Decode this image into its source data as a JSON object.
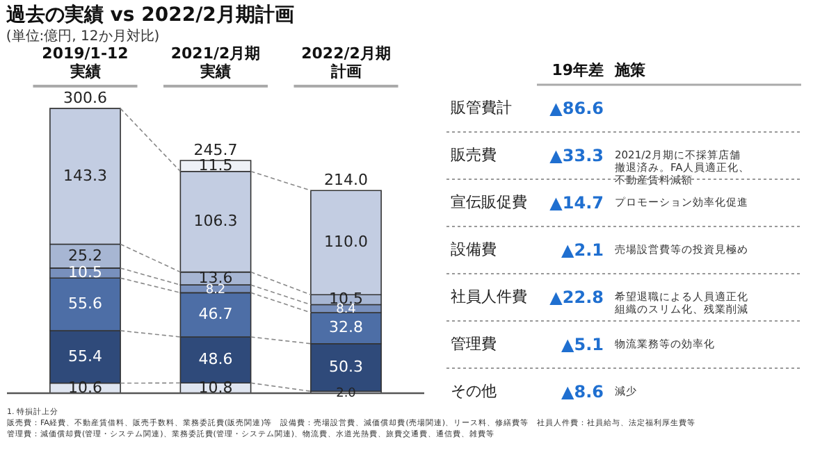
{
  "chart_data": {
    "type": "bar",
    "stacked": true,
    "title": "過去の実績 vs 2022/2月期計画",
    "subtitle": "(単位:億円, 12か月対比)",
    "categories": [
      "2019/1-12実績",
      "2021/2月期実績",
      "2022/2月期計画"
    ],
    "series": [
      {
        "name": "その他",
        "color": "#dfe5f0",
        "values": [
          10.6,
          10.8,
          2.0
        ],
        "value_labels": [
          "10.6",
          "10.8",
          "2.0"
        ]
      },
      {
        "name": "管理費",
        "color": "#2f4a7a",
        "values": [
          55.4,
          48.6,
          50.3
        ],
        "value_labels": [
          "55.4",
          "48.6",
          "50.3"
        ]
      },
      {
        "name": "社員人件費",
        "color": "#4d6ea6",
        "values": [
          55.6,
          46.7,
          32.8
        ],
        "value_labels": [
          "55.6",
          "46.7",
          "32.8"
        ]
      },
      {
        "name": "設備費",
        "color": "#7890bd",
        "values": [
          10.5,
          8.2,
          8.4
        ],
        "value_labels": [
          "10.5",
          "8.2",
          "8.4"
        ]
      },
      {
        "name": "宣伝販促費",
        "color": "#a7b6d3",
        "values": [
          25.2,
          13.6,
          10.5
        ],
        "value_labels": [
          "25.2",
          "13.6",
          "10.5"
        ]
      },
      {
        "name": "販売費",
        "color": "#c3cde2",
        "values": [
          143.3,
          106.3,
          110.0
        ],
        "value_labels": [
          "143.3",
          "106.3",
          "110.0"
        ]
      },
      {
        "color": "#eef1f7",
        "values": [
          null,
          11.5,
          null
        ],
        "value_labels": [
          null,
          "11.5",
          null
        ]
      }
    ],
    "totals": [
      "300.6",
      "245.7",
      "214.0"
    ],
    "annotations": [
      "19年差",
      "施策",
      "販管費計",
      "▲86.6",
      "▲33.3",
      "2021/2月期に不採算店舗撤退済み。FA人員適正化、不動産賃料減額",
      "▲14.7",
      "プロモーション効率化促進",
      "▲2.1",
      "売場設営費等の投資見極め",
      "▲22.8",
      "希望退職による人員適正化組織のスリム化、残業削減",
      "▲5.1",
      "物流業務等の効率化",
      "▲8.6",
      "減少",
      "1. 特損計上分",
      "販売費：FA経費、不動産賃借料、販売手数料、業務委託費(販売関連)等　設備費：売場設営費、減価償却費(売場関連)、リース料、修繕費等　社員人件費：社員給与、法定福利厚生費等",
      "管理費：減価償却費(管理・システム関連)、業務委託費(管理・システム関連)、物流費、水道光熱費、旅費交通費、通信費、雑費等"
    ]
  }
}
